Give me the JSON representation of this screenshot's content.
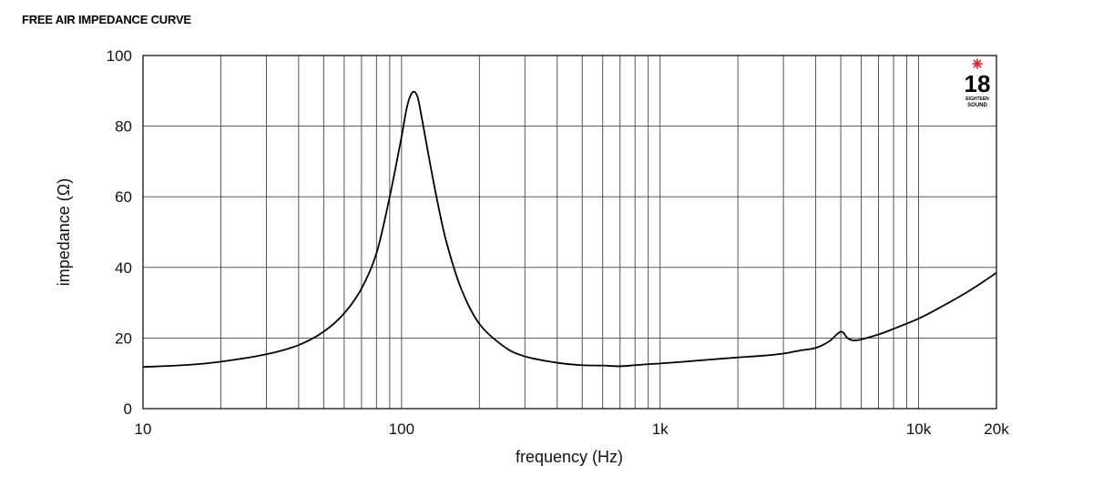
{
  "chart_data": {
    "type": "line",
    "title": "FREE AIR IMPEDANCE CURVE",
    "xlabel": "frequency (Hz)",
    "ylabel": "impedance (Ω)",
    "xscale": "log",
    "xlim": [
      10,
      20000
    ],
    "ylim": [
      0,
      100
    ],
    "grid": true,
    "x_ticks": [
      {
        "value": 10,
        "label": "10"
      },
      {
        "value": 100,
        "label": "100"
      },
      {
        "value": 1000,
        "label": "1k"
      },
      {
        "value": 10000,
        "label": "10k"
      },
      {
        "value": 20000,
        "label": "20k"
      }
    ],
    "y_ticks": [
      {
        "value": 0,
        "label": "0"
      },
      {
        "value": 20,
        "label": "20"
      },
      {
        "value": 40,
        "label": "40"
      },
      {
        "value": 60,
        "label": "60"
      },
      {
        "value": 80,
        "label": "80"
      },
      {
        "value": 100,
        "label": "100"
      }
    ],
    "series": [
      {
        "color": "#000000",
        "points": [
          [
            10,
            11.8
          ],
          [
            15,
            12.4
          ],
          [
            20,
            13.3
          ],
          [
            30,
            15.4
          ],
          [
            40,
            18.0
          ],
          [
            50,
            21.8
          ],
          [
            60,
            27.0
          ],
          [
            70,
            34.0
          ],
          [
            80,
            44.0
          ],
          [
            90,
            60.0
          ],
          [
            100,
            77.0
          ],
          [
            105,
            85.5
          ],
          [
            110,
            89.5
          ],
          [
            115,
            88.5
          ],
          [
            120,
            82.0
          ],
          [
            130,
            68.0
          ],
          [
            140,
            56.0
          ],
          [
            150,
            46.5
          ],
          [
            170,
            34.0
          ],
          [
            200,
            24.0
          ],
          [
            250,
            17.5
          ],
          [
            300,
            14.8
          ],
          [
            400,
            13.0
          ],
          [
            500,
            12.3
          ],
          [
            600,
            12.2
          ],
          [
            700,
            12.0
          ],
          [
            800,
            12.3
          ],
          [
            900,
            12.6
          ],
          [
            1000,
            12.8
          ],
          [
            1200,
            13.2
          ],
          [
            1500,
            13.8
          ],
          [
            2000,
            14.5
          ],
          [
            2500,
            15.0
          ],
          [
            3000,
            15.6
          ],
          [
            3500,
            16.5
          ],
          [
            4000,
            17.2
          ],
          [
            4500,
            19.0
          ],
          [
            5000,
            21.8
          ],
          [
            5300,
            20.0
          ],
          [
            5600,
            19.3
          ],
          [
            6000,
            19.6
          ],
          [
            7000,
            21.0
          ],
          [
            8000,
            22.6
          ],
          [
            10000,
            25.5
          ],
          [
            12000,
            28.5
          ],
          [
            15000,
            32.5
          ],
          [
            18000,
            36.2
          ],
          [
            20000,
            38.5
          ]
        ]
      }
    ]
  },
  "logo": {
    "number": "18",
    "text_line1": "EIGHTEEN",
    "text_line2": "SOUND",
    "star_color": "#e8202a"
  }
}
